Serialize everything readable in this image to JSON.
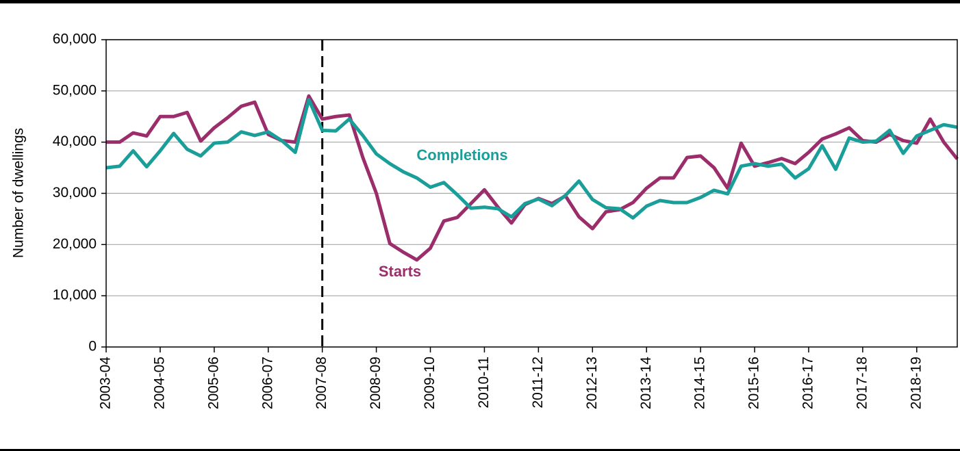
{
  "chart_data": {
    "type": "line",
    "y_label": "Number  of dwellings",
    "categories": [
      "2003-04",
      null,
      null,
      null,
      "2004-05",
      null,
      null,
      null,
      "2005-06",
      null,
      null,
      null,
      "2006-07",
      null,
      null,
      null,
      "2007-08",
      null,
      null,
      null,
      "2008-09",
      null,
      null,
      null,
      "2009-10",
      null,
      null,
      null,
      "2010-11",
      null,
      null,
      null,
      "2011-12",
      null,
      null,
      null,
      "2012-13",
      null,
      null,
      null,
      "2013-14",
      null,
      null,
      null,
      "2014-15",
      null,
      null,
      null,
      "2015-16",
      null,
      null,
      null,
      "2016-17",
      null,
      null,
      null,
      "2017-18",
      null,
      null,
      null,
      "2018-19",
      null,
      null,
      null
    ],
    "reference_line": "2007-08",
    "series": [
      {
        "name": "Starts",
        "color": "#9b2d6b",
        "values": [
          40000,
          40000,
          41800,
          41200,
          45000,
          45000,
          45800,
          40200,
          42800,
          44800,
          47000,
          47800,
          41500,
          40300,
          40000,
          49000,
          44500,
          45000,
          45300,
          37000,
          30000,
          20200,
          18500,
          17000,
          19300,
          24600,
          25300,
          28000,
          30700,
          27300,
          24200,
          27800,
          29000,
          28000,
          29500,
          25400,
          23100,
          26400,
          26800,
          28200,
          31000,
          33000,
          33000,
          37000,
          37300,
          35000,
          31000,
          39800,
          35300,
          36000,
          36800,
          35800,
          38000,
          40600,
          41600,
          42800,
          40300,
          40000,
          41500,
          40300,
          39800,
          44500,
          40000,
          36700
        ]
      },
      {
        "name": "Completions",
        "color": "#1a9e9a",
        "values": [
          35000,
          35300,
          38300,
          35200,
          38300,
          41700,
          38600,
          37300,
          39800,
          40000,
          42000,
          41300,
          42000,
          40300,
          38000,
          48300,
          42300,
          42200,
          44500,
          41300,
          37700,
          35800,
          34200,
          33000,
          31200,
          32100,
          29700,
          27100,
          27300,
          27000,
          25400,
          28000,
          28900,
          27600,
          29600,
          32400,
          28800,
          27200,
          27000,
          25200,
          27500,
          28600,
          28200,
          28200,
          29200,
          30600,
          29900,
          35300,
          35800,
          35300,
          35700,
          33000,
          34800,
          39300,
          34700,
          40800,
          40000,
          40200,
          42300,
          37800,
          41200,
          42300,
          43400,
          42900
        ]
      }
    ],
    "ylim": [
      0,
      60000
    ],
    "yticks": [
      0,
      {
        "value": 10000,
        "label": "10,000"
      },
      {
        "value": 20000,
        "label": "20,000"
      },
      {
        "value": 30000,
        "label": "30,000"
      },
      {
        "value": 40000,
        "label": "40,000"
      },
      {
        "value": 50000,
        "label": "50,000"
      },
      {
        "value": 60000,
        "label": "60,000"
      }
    ],
    "grid": true
  }
}
